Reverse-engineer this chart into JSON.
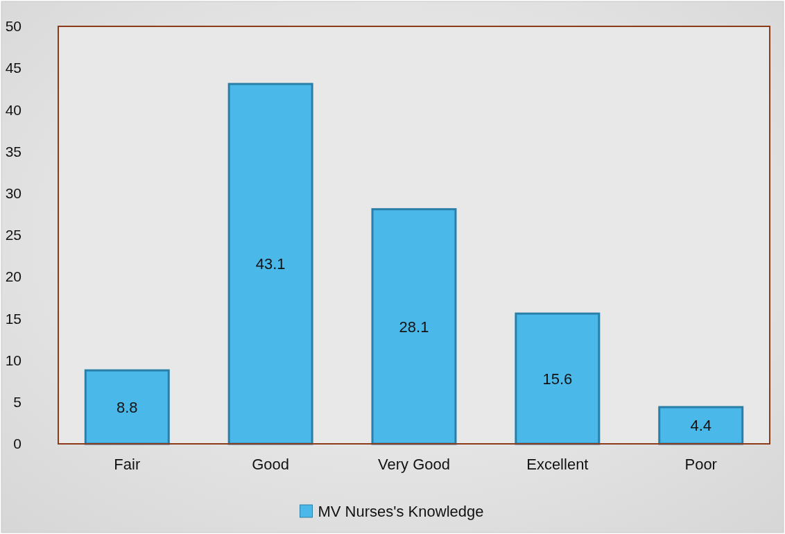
{
  "chart_data": {
    "type": "bar",
    "categories": [
      "Fair",
      "Good",
      "Very Good",
      "Excellent",
      "Poor"
    ],
    "series": [
      {
        "name": "MV Nurses's Knowledge",
        "color": "#4ab8e8",
        "values": [
          8.8,
          43.1,
          28.1,
          15.6,
          4.4
        ]
      }
    ],
    "ylim": [
      0,
      50
    ],
    "yticks": [
      0,
      5,
      10,
      15,
      20,
      25,
      30,
      35,
      40,
      45,
      50
    ],
    "data_labels": true,
    "legend": "bottom",
    "grid": false
  }
}
